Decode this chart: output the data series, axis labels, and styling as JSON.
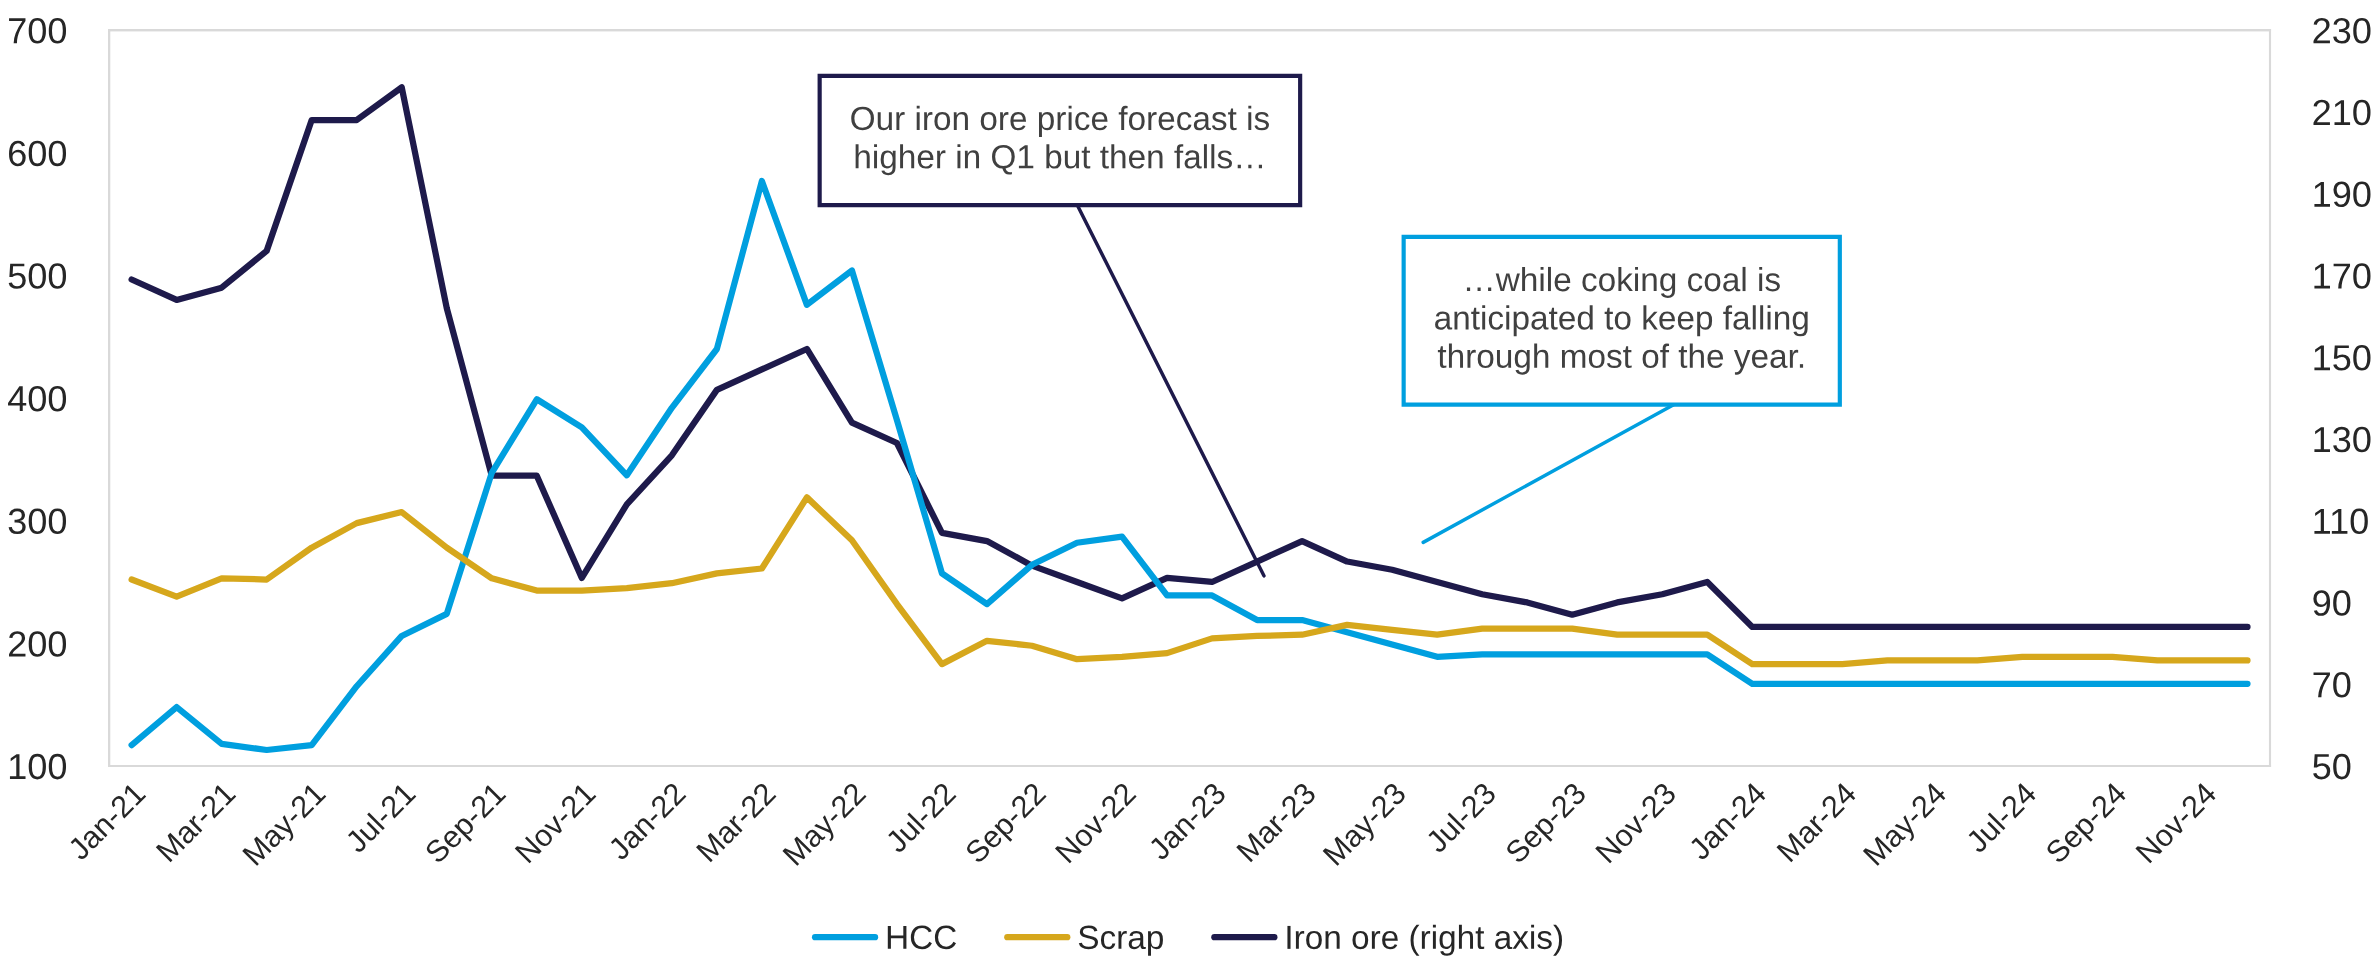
{
  "chart_data": {
    "type": "line",
    "categories": [
      "Jan-21",
      null,
      "Mar-21",
      null,
      "May-21",
      null,
      "Jul-21",
      null,
      "Sep-21",
      null,
      "Nov-21",
      null,
      "Jan-22",
      null,
      "Mar-22",
      null,
      "May-22",
      null,
      "Jul-22",
      null,
      "Sep-22",
      null,
      "Nov-22",
      null,
      "Jan-23",
      null,
      "Mar-23",
      null,
      "May-23",
      null,
      "Jul-23",
      null,
      "Sep-23",
      null,
      "Nov-23",
      null,
      "Jan-24",
      null,
      "Mar-24",
      null,
      "May-24",
      null,
      "Jul-24",
      null,
      "Sep-24",
      null,
      "Nov-24",
      null
    ],
    "series": [
      {
        "name": "HCC",
        "color": "#009fdf",
        "values": [
          117,
          148,
          118,
          113,
          117,
          165,
          206,
          224,
          339,
          399,
          376,
          337,
          392,
          440,
          577,
          476,
          504,
          382,
          257,
          232,
          264,
          282,
          287,
          239,
          239,
          219,
          219,
          209,
          199,
          189,
          191,
          191,
          191,
          191,
          191,
          191,
          167,
          167,
          167,
          167,
          167,
          167,
          167,
          167,
          167,
          167,
          167,
          167
        ]
      },
      {
        "name": "Scrap",
        "color": "#d6a71c",
        "values": [
          252,
          238,
          253,
          252,
          278,
          298,
          307,
          278,
          253,
          243,
          243,
          245,
          249,
          257,
          261,
          319,
          284,
          232,
          183,
          202,
          198,
          187,
          189,
          192,
          204,
          206,
          207,
          215,
          211,
          207,
          212,
          212,
          212,
          207,
          207,
          207,
          183,
          183,
          183,
          186,
          186,
          186,
          189,
          189,
          189,
          186,
          186,
          186
        ]
      },
      {
        "name": "Iron ore (right axis)",
        "color": "#1e1a4b",
        "axis": "y2",
        "values": [
          169,
          164,
          167,
          176,
          208,
          208,
          216,
          162,
          121,
          121,
          96,
          114,
          126,
          142,
          147,
          152,
          134,
          129,
          107,
          105,
          99,
          95,
          91,
          96,
          95,
          100,
          105,
          100,
          98,
          95,
          92,
          90,
          87,
          90,
          92,
          95,
          84,
          84,
          84,
          84,
          84,
          84,
          84,
          84,
          84,
          84,
          84,
          84
        ]
      }
    ],
    "ylim": [
      100,
      700
    ],
    "yticks": [
      100,
      200,
      300,
      400,
      500,
      600,
      700
    ],
    "y2lim": [
      50,
      230
    ],
    "y2ticks": [
      50,
      70,
      90,
      110,
      130,
      150,
      170,
      190,
      210,
      230
    ],
    "annotations": [
      "Our iron ore price forecast is\nhigher in Q1 but then falls…",
      "…while coking coal is\nanticipated to keep falling\nthrough most of the year."
    ],
    "legend": "bottom",
    "grid": false,
    "marker": "none",
    "line_style": "solid"
  }
}
